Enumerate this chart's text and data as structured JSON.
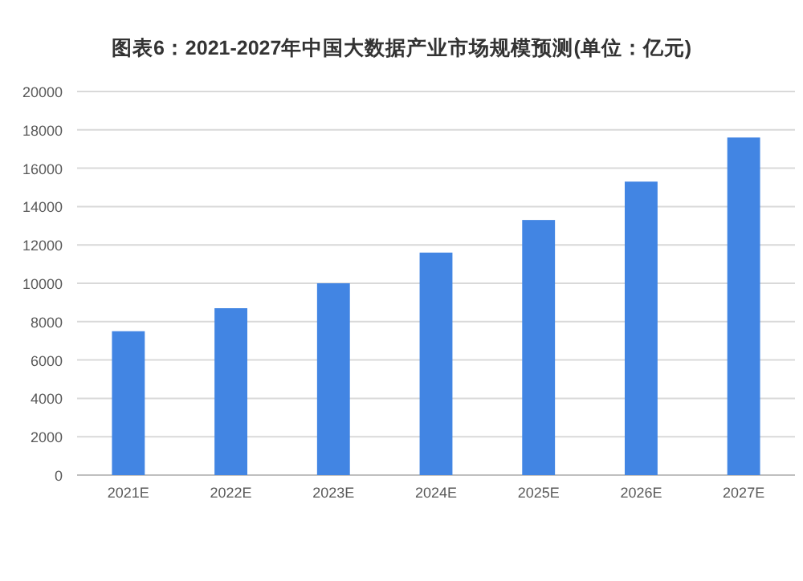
{
  "chart_data": {
    "type": "bar",
    "title": "图表6：2021-2027年中国大数据产业市场规模预测(单位：亿元)",
    "categories": [
      "2021E",
      "2022E",
      "2023E",
      "2024E",
      "2025E",
      "2026E",
      "2027E"
    ],
    "values": [
      7500,
      8700,
      10000,
      11600,
      13300,
      15300,
      17600
    ],
    "color": "#4285e3",
    "ylim": [
      0,
      20000
    ],
    "yticks": [
      0,
      2000,
      4000,
      6000,
      8000,
      10000,
      12000,
      14000,
      16000,
      18000,
      20000
    ],
    "grid": "y"
  }
}
